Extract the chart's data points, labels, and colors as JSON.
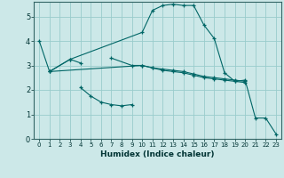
{
  "xlabel": "Humidex (Indice chaleur)",
  "bg_color": "#cce8e8",
  "grid_color": "#99cccc",
  "line_color": "#006666",
  "xlim": [
    -0.5,
    23.5
  ],
  "ylim": [
    0,
    5.6
  ],
  "yticks": [
    0,
    1,
    2,
    3,
    4,
    5
  ],
  "xticks": [
    0,
    1,
    2,
    3,
    4,
    5,
    6,
    7,
    8,
    9,
    10,
    11,
    12,
    13,
    14,
    15,
    16,
    17,
    18,
    19,
    20,
    21,
    22,
    23
  ],
  "lines": [
    {
      "x": [
        0,
        1,
        3,
        10,
        11,
        12,
        13,
        14,
        15,
        16,
        17,
        18,
        19,
        20,
        21,
        22,
        23
      ],
      "y": [
        4.0,
        2.75,
        3.25,
        4.35,
        5.25,
        5.45,
        5.5,
        5.45,
        5.45,
        4.65,
        4.1,
        2.7,
        2.35,
        2.4,
        0.85,
        0.85,
        0.2
      ]
    },
    {
      "x": [
        1,
        3,
        4
      ],
      "y": [
        2.75,
        3.25,
        3.1
      ]
    },
    {
      "x": [
        4,
        5,
        6,
        7,
        8,
        9
      ],
      "y": [
        2.1,
        1.75,
        1.5,
        1.4,
        1.35,
        1.4
      ]
    },
    {
      "x": [
        7,
        9,
        10,
        11,
        12,
        13,
        14,
        15,
        16,
        17,
        18,
        19,
        20
      ],
      "y": [
        3.3,
        3.0,
        3.0,
        2.9,
        2.85,
        2.8,
        2.75,
        2.65,
        2.55,
        2.5,
        2.45,
        2.4,
        2.35
      ]
    },
    {
      "x": [
        1,
        10,
        11,
        12,
        13,
        14,
        15,
        16,
        17,
        18,
        19,
        20
      ],
      "y": [
        2.75,
        3.0,
        2.9,
        2.8,
        2.75,
        2.7,
        2.6,
        2.5,
        2.45,
        2.4,
        2.35,
        2.3
      ]
    }
  ]
}
